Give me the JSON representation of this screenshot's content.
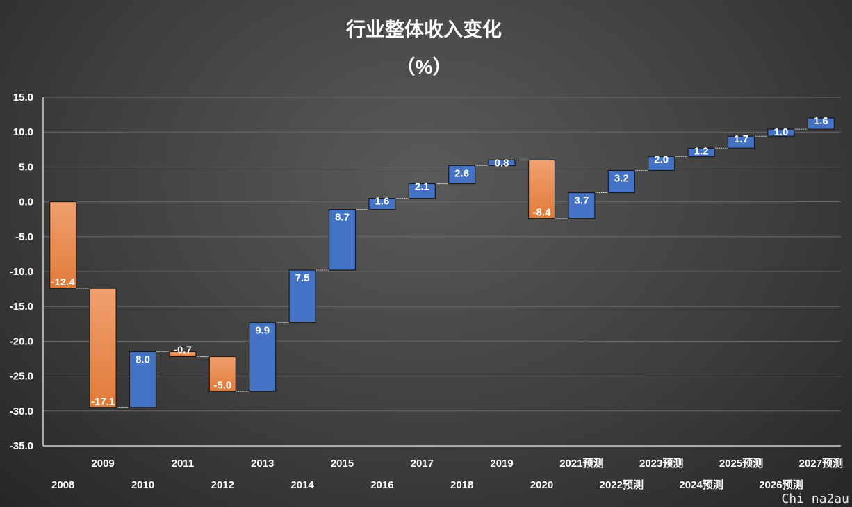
{
  "colors": {
    "decrease": "#E07B39",
    "decrease_top": "#F0A070",
    "increase": "#4472C4",
    "gridline": "#6a6a6a",
    "axis": "#d0d0d0",
    "connector": "#cfcfcf"
  },
  "chart_data": {
    "type": "bar",
    "subtype": "waterfall",
    "title": "行业整体收入变化",
    "subtitle": "（%）",
    "xlabel": "",
    "ylabel": "",
    "ylim": [
      -35,
      15
    ],
    "ytick_step": 5,
    "ytick_labels": [
      "15.0",
      "10.0",
      "5.0",
      "0.0",
      "-5.0",
      "-10.0",
      "-15.0",
      "-20.0",
      "-25.0",
      "-30.0",
      "-35.0"
    ],
    "grid": true,
    "legend": "none",
    "categories": [
      "2008",
      "2009",
      "2010",
      "2011",
      "2012",
      "2013",
      "2014",
      "2015",
      "2016",
      "2017",
      "2018",
      "2019",
      "2020",
      "2021预测",
      "2022预测",
      "2023预测",
      "2024预测",
      "2025预测",
      "2026预测",
      "2027预测"
    ],
    "values": [
      -12.4,
      -17.1,
      8.0,
      -0.7,
      -5.0,
      9.9,
      7.5,
      8.7,
      1.6,
      2.1,
      2.6,
      0.8,
      -8.4,
      3.7,
      3.2,
      2.0,
      1.2,
      1.7,
      1.0,
      1.6
    ],
    "data_labels": [
      "-12.4",
      "-17.1",
      "8.0",
      "-0.7",
      "-5.0",
      "9.9",
      "7.5",
      "8.7",
      "1.6",
      "2.1",
      "2.6",
      "0.8",
      "-8.4",
      "3.7",
      "3.2",
      "2.0",
      "1.2",
      "1.7",
      "1.0",
      "1.6"
    ]
  },
  "watermark": "Chi na2au"
}
